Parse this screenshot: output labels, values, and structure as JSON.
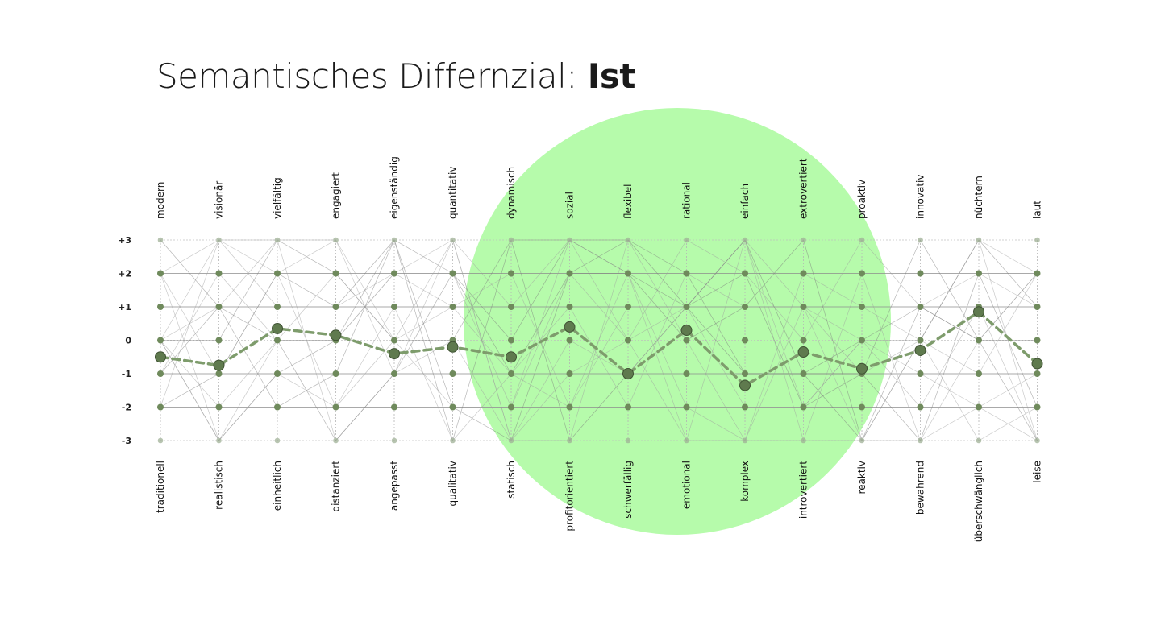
{
  "title": {
    "main": "Semantisches Differnzial:",
    "highlight": "Ist"
  },
  "colors": {
    "highlight_circle": "#b6fbab",
    "marker": "#6f8a5c",
    "mean_line": "#7e9c6c",
    "grid": "#9a9a9a"
  },
  "chart_data": {
    "type": "line",
    "title": "Semantisches Differnzial: Ist",
    "ylim": [
      -3,
      3
    ],
    "y_ticks": [
      "+3",
      "+2",
      "+1",
      "0",
      "-1",
      "-2",
      "-3"
    ],
    "categories_top": [
      "modern",
      "visionär",
      "vielfältig",
      "engagiert",
      "eigenständig",
      "quantitativ",
      "dynamisch",
      "sozial",
      "flexibel",
      "rational",
      "einfach",
      "extrovertiert",
      "proaktiv",
      "innovativ",
      "nüchtern",
      "laut"
    ],
    "categories_bottom": [
      "traditionell",
      "realistisch",
      "einheitlich",
      "distanziert",
      "angepasst",
      "qualitativ",
      "statisch",
      "profitorientiert",
      "schwerfällig",
      "emotional",
      "komplex",
      "introvertiert",
      "reaktiv",
      "bewahrend",
      "überschwänglich",
      "leise"
    ],
    "series": [
      {
        "values": [
          -0.5,
          -0.75,
          0.35,
          0.15,
          -0.4,
          -0.2,
          -0.5,
          0.4,
          -1.0,
          0.3,
          -1.35,
          -0.35,
          -0.85,
          -0.3,
          0.85,
          -0.7
        ]
      }
    ],
    "grid": true
  }
}
